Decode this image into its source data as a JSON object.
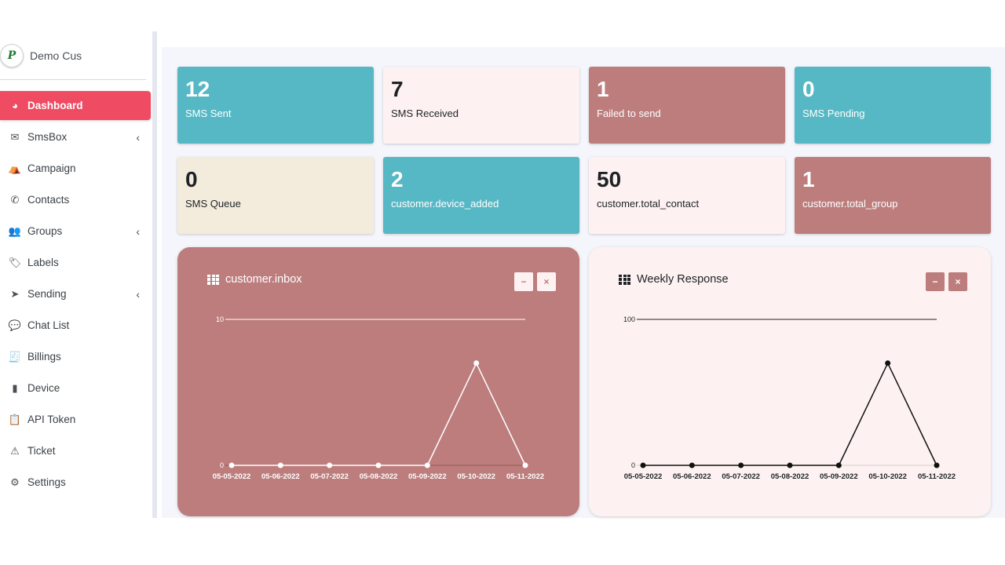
{
  "sidebar": {
    "brand_name": "Demo Cus",
    "logo_text": "P",
    "items": [
      {
        "label": "Dashboard",
        "icon": "gauge-icon",
        "glyph": "◕",
        "active": true,
        "chevron": false
      },
      {
        "label": "SmsBox",
        "icon": "envelope-icon",
        "glyph": "✉",
        "active": false,
        "chevron": true
      },
      {
        "label": "Campaign",
        "icon": "campground-icon",
        "glyph": "⛺",
        "active": false,
        "chevron": false
      },
      {
        "label": "Contacts",
        "icon": "phone-icon",
        "glyph": "✆",
        "active": false,
        "chevron": false
      },
      {
        "label": "Groups",
        "icon": "users-icon",
        "glyph": "👥",
        "active": false,
        "chevron": true
      },
      {
        "label": "Labels",
        "icon": "tag-icon",
        "glyph": "🏷",
        "active": false,
        "chevron": false
      },
      {
        "label": "Sending",
        "icon": "paper-plane-icon",
        "glyph": "➤",
        "active": false,
        "chevron": true
      },
      {
        "label": "Chat List",
        "icon": "comments-icon",
        "glyph": "💬",
        "active": false,
        "chevron": false
      },
      {
        "label": "Billings",
        "icon": "invoice-icon",
        "glyph": "🧾",
        "active": false,
        "chevron": false
      },
      {
        "label": "Device",
        "icon": "mobile-icon",
        "glyph": "▮",
        "active": false,
        "chevron": false
      },
      {
        "label": "API Token",
        "icon": "clipboard-icon",
        "glyph": "📋",
        "active": false,
        "chevron": false
      },
      {
        "label": "Ticket",
        "icon": "warning-icon",
        "glyph": "⚠",
        "active": false,
        "chevron": false
      },
      {
        "label": "Settings",
        "icon": "cog-icon",
        "glyph": "⚙",
        "active": false,
        "chevron": false
      }
    ],
    "chevron_glyph": "‹"
  },
  "stats": [
    {
      "value": "12",
      "label": "SMS Sent",
      "style": "teal"
    },
    {
      "value": "7",
      "label": "SMS Received",
      "style": "pink"
    },
    {
      "value": "1",
      "label": "Failed to send",
      "style": "rose"
    },
    {
      "value": "0",
      "label": "SMS Pending",
      "style": "teal"
    },
    {
      "value": "0",
      "label": "SMS Queue",
      "style": "cream"
    },
    {
      "value": "2",
      "label": "customer.device_added",
      "style": "teal"
    },
    {
      "value": "50",
      "label": "customer.total_contact",
      "style": "pink"
    },
    {
      "value": "1",
      "label": "customer.total_group",
      "style": "rose"
    }
  ],
  "panels": [
    {
      "title": "customer.inbox",
      "minimize_glyph": "−",
      "close_glyph": "×"
    },
    {
      "title": "Weekly Response",
      "minimize_glyph": "−",
      "close_glyph": "×"
    }
  ],
  "chart_data": [
    {
      "type": "line",
      "title": "customer.inbox",
      "x": [
        "05-05-2022",
        "05-06-2022",
        "05-07-2022",
        "05-08-2022",
        "05-09-2022",
        "05-10-2022",
        "05-11-2022"
      ],
      "values": [
        0,
        0,
        0,
        0,
        0,
        7,
        0
      ],
      "ylim": [
        0,
        10
      ],
      "yticks": [
        "0",
        "10"
      ],
      "colors": {
        "line": "#ffffff",
        "bg": "#bd7d7d"
      }
    },
    {
      "type": "line",
      "title": "Weekly Response",
      "x": [
        "05-05-2022",
        "05-06-2022",
        "05-07-2022",
        "05-08-2022",
        "05-09-2022",
        "05-10-2022",
        "05-11-2022"
      ],
      "values": [
        0,
        0,
        0,
        0,
        0,
        70,
        0
      ],
      "ylim": [
        0,
        100
      ],
      "yticks": [
        "0",
        "100"
      ],
      "colors": {
        "line": "#111111",
        "bg": "#fdf2f1"
      }
    }
  ]
}
